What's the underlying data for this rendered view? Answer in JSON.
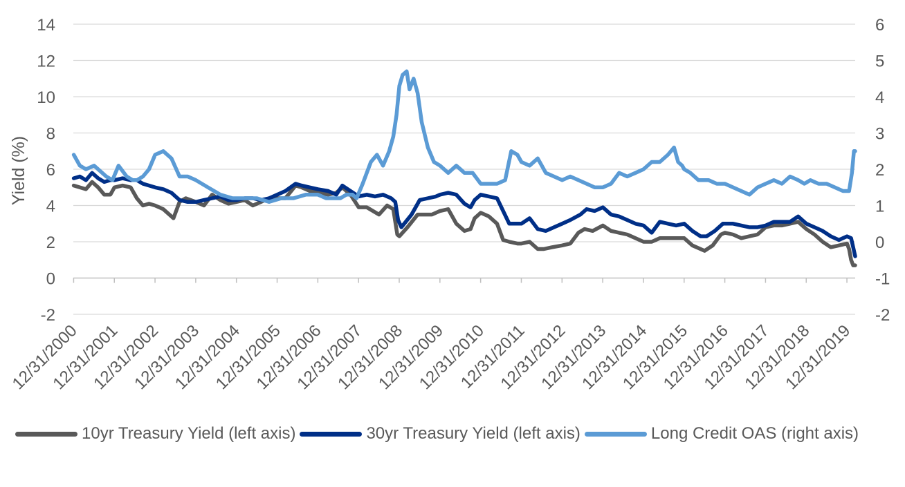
{
  "chart_data": {
    "type": "line",
    "title": "",
    "ylabel": "Yield (%)",
    "y2label": "",
    "ylim": [
      -2,
      14
    ],
    "y2lim": [
      -2,
      6
    ],
    "yticks": [
      "14",
      "12",
      "10",
      "8",
      "6",
      "4",
      "2",
      "0",
      "-2"
    ],
    "y2ticks": [
      "6",
      "5",
      "4",
      "3",
      "2",
      "1",
      "0",
      "-1",
      "-2"
    ],
    "xlim": [
      2000.99,
      2020.2
    ],
    "categories": [
      "12/31/2000",
      "12/31/2001",
      "12/31/2002",
      "12/31/2003",
      "12/31/2004",
      "12/31/2005",
      "12/31/2006",
      "12/31/2007",
      "12/31/2008",
      "12/31/2009",
      "12/31/2010",
      "12/31/2011",
      "12/31/2012",
      "12/31/2013",
      "12/31/2014",
      "12/31/2015",
      "12/31/2016",
      "12/31/2017",
      "12/31/2018",
      "12/31/2019"
    ],
    "grid": true,
    "legend_position": "bottom",
    "series": [
      {
        "name": "10yr Treasury Yield (left axis)",
        "axis": "left",
        "color": "#595959",
        "x": [
          2001.0,
          2001.15,
          2001.3,
          2001.45,
          2001.6,
          2001.75,
          2001.9,
          2002.0,
          2002.2,
          2002.4,
          2002.55,
          2002.7,
          2002.85,
          2003.0,
          2003.2,
          2003.4,
          2003.45,
          2003.6,
          2003.75,
          2004.0,
          2004.2,
          2004.4,
          2004.6,
          2004.8,
          2005.0,
          2005.2,
          2005.4,
          2005.6,
          2005.8,
          2006.0,
          2006.2,
          2006.45,
          2006.6,
          2006.8,
          2007.0,
          2007.25,
          2007.45,
          2007.6,
          2007.8,
          2008.0,
          2008.2,
          2008.5,
          2008.7,
          2008.85,
          2008.95,
          2009.0,
          2009.2,
          2009.45,
          2009.6,
          2009.8,
          2010.0,
          2010.2,
          2010.4,
          2010.6,
          2010.75,
          2010.85,
          2011.0,
          2011.2,
          2011.4,
          2011.55,
          2011.7,
          2011.9,
          2012.0,
          2012.2,
          2012.4,
          2012.55,
          2012.75,
          2013.0,
          2013.2,
          2013.4,
          2013.55,
          2013.75,
          2014.0,
          2014.2,
          2014.4,
          2014.6,
          2014.8,
          2015.0,
          2015.2,
          2015.4,
          2015.6,
          2015.8,
          2016.0,
          2016.2,
          2016.4,
          2016.5,
          2016.7,
          2016.9,
          2017.0,
          2017.2,
          2017.4,
          2017.6,
          2017.8,
          2018.0,
          2018.2,
          2018.4,
          2018.6,
          2018.8,
          2018.9,
          2019.0,
          2019.2,
          2019.4,
          2019.6,
          2019.8,
          2020.0,
          2020.05,
          2020.1,
          2020.15,
          2020.2
        ],
        "values": [
          5.1,
          5.0,
          4.9,
          5.3,
          5.0,
          4.6,
          4.6,
          5.0,
          5.1,
          5.0,
          4.4,
          4.0,
          4.1,
          4.0,
          3.8,
          3.4,
          3.3,
          4.2,
          4.4,
          4.2,
          4.0,
          4.6,
          4.3,
          4.1,
          4.2,
          4.3,
          4.0,
          4.2,
          4.4,
          4.4,
          4.4,
          5.1,
          5.0,
          4.8,
          4.7,
          4.6,
          4.7,
          5.0,
          4.6,
          3.9,
          3.9,
          3.5,
          4.0,
          3.8,
          2.4,
          2.3,
          2.8,
          3.5,
          3.5,
          3.5,
          3.7,
          3.8,
          3.0,
          2.6,
          2.7,
          3.3,
          3.6,
          3.4,
          3.0,
          2.1,
          2.0,
          1.9,
          1.9,
          2.0,
          1.6,
          1.6,
          1.7,
          1.8,
          1.9,
          2.5,
          2.7,
          2.6,
          2.9,
          2.6,
          2.5,
          2.4,
          2.2,
          2.0,
          2.0,
          2.2,
          2.2,
          2.2,
          2.2,
          1.8,
          1.6,
          1.5,
          1.8,
          2.4,
          2.5,
          2.4,
          2.2,
          2.3,
          2.4,
          2.8,
          2.9,
          2.9,
          3.0,
          3.1,
          2.9,
          2.7,
          2.4,
          2.0,
          1.7,
          1.8,
          1.9,
          1.6,
          1.0,
          0.7,
          0.7
        ]
      },
      {
        "name": "30yr Treasury Yield (left axis)",
        "axis": "left",
        "color": "#002F87",
        "x": [
          2001.0,
          2001.15,
          2001.3,
          2001.45,
          2001.6,
          2001.75,
          2001.9,
          2002.0,
          2002.2,
          2002.4,
          2002.55,
          2002.7,
          2002.85,
          2003.0,
          2003.2,
          2003.4,
          2003.6,
          2003.8,
          2004.0,
          2004.2,
          2004.4,
          2004.6,
          2004.8,
          2005.0,
          2005.2,
          2005.4,
          2005.6,
          2005.8,
          2006.0,
          2006.2,
          2006.45,
          2006.6,
          2006.8,
          2007.0,
          2007.25,
          2007.45,
          2007.6,
          2007.8,
          2008.0,
          2008.2,
          2008.4,
          2008.6,
          2008.8,
          2008.9,
          2008.97,
          2009.05,
          2009.3,
          2009.5,
          2009.7,
          2009.9,
          2010.0,
          2010.2,
          2010.4,
          2010.6,
          2010.75,
          2010.85,
          2011.0,
          2011.2,
          2011.4,
          2011.55,
          2011.7,
          2011.9,
          2012.0,
          2012.2,
          2012.4,
          2012.6,
          2012.8,
          2013.0,
          2013.2,
          2013.45,
          2013.6,
          2013.8,
          2014.0,
          2014.2,
          2014.4,
          2014.6,
          2014.8,
          2015.0,
          2015.2,
          2015.4,
          2015.6,
          2015.8,
          2016.0,
          2016.2,
          2016.4,
          2016.55,
          2016.75,
          2016.95,
          2017.2,
          2017.4,
          2017.6,
          2017.8,
          2018.0,
          2018.2,
          2018.4,
          2018.6,
          2018.8,
          2019.0,
          2019.2,
          2019.4,
          2019.6,
          2019.8,
          2020.0,
          2020.1,
          2020.15,
          2020.2
        ],
        "values": [
          5.5,
          5.6,
          5.4,
          5.8,
          5.5,
          5.3,
          5.4,
          5.4,
          5.5,
          5.4,
          5.4,
          5.2,
          5.1,
          5.0,
          4.9,
          4.7,
          4.3,
          4.2,
          4.2,
          4.3,
          4.4,
          4.5,
          4.3,
          4.3,
          4.4,
          4.4,
          4.3,
          4.4,
          4.6,
          4.8,
          5.2,
          5.1,
          5.0,
          4.9,
          4.8,
          4.6,
          5.1,
          4.8,
          4.5,
          4.6,
          4.5,
          4.6,
          4.4,
          4.2,
          3.2,
          2.8,
          3.5,
          4.3,
          4.4,
          4.5,
          4.6,
          4.7,
          4.6,
          4.1,
          3.9,
          4.3,
          4.6,
          4.5,
          4.4,
          3.7,
          3.0,
          3.0,
          3.0,
          3.3,
          2.7,
          2.6,
          2.8,
          3.0,
          3.2,
          3.5,
          3.8,
          3.7,
          3.9,
          3.5,
          3.4,
          3.2,
          3.0,
          2.9,
          2.5,
          3.1,
          3.0,
          2.9,
          3.0,
          2.6,
          2.3,
          2.3,
          2.6,
          3.0,
          3.0,
          2.9,
          2.8,
          2.8,
          2.9,
          3.1,
          3.1,
          3.1,
          3.4,
          3.0,
          2.8,
          2.6,
          2.3,
          2.1,
          2.3,
          2.2,
          1.7,
          1.2
        ]
      },
      {
        "name": "Long Credit OAS (right axis)",
        "axis": "right",
        "color": "#5B9BD5",
        "x": [
          2001.0,
          2001.15,
          2001.3,
          2001.5,
          2001.7,
          2001.8,
          2001.95,
          2002.1,
          2002.3,
          2002.45,
          2002.55,
          2002.7,
          2002.85,
          2003.0,
          2003.2,
          2003.4,
          2003.6,
          2003.8,
          2004.0,
          2004.3,
          2004.6,
          2004.9,
          2005.2,
          2005.5,
          2005.8,
          2006.1,
          2006.4,
          2006.7,
          2007.0,
          2007.2,
          2007.4,
          2007.55,
          2007.7,
          2007.85,
          2007.95,
          2008.1,
          2008.3,
          2008.45,
          2008.6,
          2008.75,
          2008.85,
          2008.93,
          2009.0,
          2009.08,
          2009.18,
          2009.25,
          2009.35,
          2009.45,
          2009.55,
          2009.7,
          2009.85,
          2010.0,
          2010.2,
          2010.4,
          2010.5,
          2010.6,
          2010.8,
          2011.0,
          2011.2,
          2011.4,
          2011.6,
          2011.75,
          2011.9,
          2012.0,
          2012.2,
          2012.4,
          2012.6,
          2012.8,
          2013.0,
          2013.2,
          2013.4,
          2013.6,
          2013.8,
          2014.0,
          2014.2,
          2014.4,
          2014.6,
          2014.8,
          2015.0,
          2015.2,
          2015.4,
          2015.6,
          2015.75,
          2015.85,
          2015.95,
          2016.0,
          2016.15,
          2016.35,
          2016.6,
          2016.8,
          2017.0,
          2017.2,
          2017.4,
          2017.6,
          2017.8,
          2018.0,
          2018.2,
          2018.4,
          2018.6,
          2018.8,
          2018.95,
          2019.1,
          2019.3,
          2019.5,
          2019.7,
          2019.9,
          2020.05,
          2020.12,
          2020.17,
          2020.2
        ],
        "values": [
          2.4,
          2.1,
          2.0,
          2.1,
          1.9,
          1.8,
          1.7,
          2.1,
          1.8,
          1.7,
          1.7,
          1.8,
          2.0,
          2.4,
          2.5,
          2.3,
          1.8,
          1.8,
          1.7,
          1.5,
          1.3,
          1.2,
          1.2,
          1.2,
          1.1,
          1.2,
          1.2,
          1.3,
          1.3,
          1.2,
          1.2,
          1.2,
          1.3,
          1.3,
          1.2,
          1.6,
          2.2,
          2.4,
          2.1,
          2.5,
          2.9,
          3.5,
          4.3,
          4.6,
          4.7,
          4.2,
          4.5,
          4.1,
          3.3,
          2.6,
          2.2,
          2.1,
          1.9,
          2.1,
          2.0,
          1.9,
          1.9,
          1.6,
          1.6,
          1.6,
          1.7,
          2.5,
          2.4,
          2.2,
          2.1,
          2.3,
          1.9,
          1.8,
          1.7,
          1.8,
          1.7,
          1.6,
          1.5,
          1.5,
          1.6,
          1.9,
          1.8,
          1.9,
          2.0,
          2.2,
          2.2,
          2.4,
          2.6,
          2.2,
          2.1,
          2.0,
          1.9,
          1.7,
          1.7,
          1.6,
          1.6,
          1.5,
          1.4,
          1.3,
          1.5,
          1.6,
          1.7,
          1.6,
          1.8,
          1.7,
          1.6,
          1.7,
          1.6,
          1.6,
          1.5,
          1.4,
          1.4,
          1.9,
          2.5,
          2.5
        ]
      }
    ]
  }
}
